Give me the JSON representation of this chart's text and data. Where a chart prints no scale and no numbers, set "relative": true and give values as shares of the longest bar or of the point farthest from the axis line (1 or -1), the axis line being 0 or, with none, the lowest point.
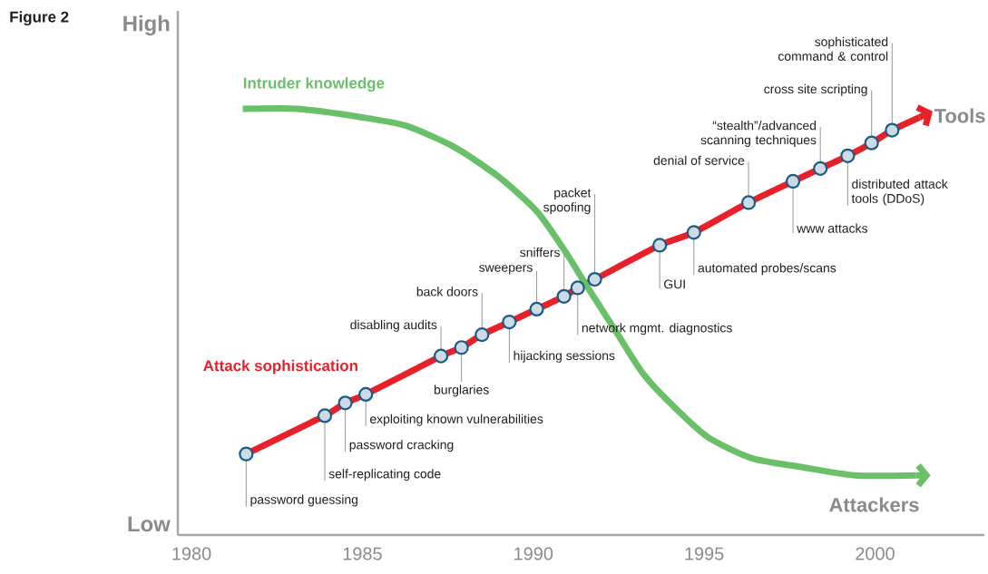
{
  "chart_data": {
    "type": "line",
    "relative": true,
    "xlim": [
      1979.6,
      2003.2
    ],
    "xticks": [
      1980,
      1985,
      1990,
      1995,
      2000
    ],
    "series": [
      {
        "name": "Attack sophistication",
        "type": "line",
        "color": "#e8202a",
        "x": [
          1981.6,
          1983.9,
          1984.5,
          1985.1,
          1987.3,
          1987.9,
          1988.5,
          1989.3,
          1990.1,
          1990.9,
          1991.3,
          1991.8,
          1993.7,
          1994.7,
          1996.3,
          1997.6,
          1998.4,
          1999.2,
          1999.9,
          2000.5,
          2001.3
        ],
        "values": [
          0.19,
          0.28,
          0.31,
          0.33,
          0.42,
          0.44,
          0.47,
          0.5,
          0.53,
          0.56,
          0.58,
          0.6,
          0.68,
          0.71,
          0.78,
          0.83,
          0.86,
          0.89,
          0.92,
          0.95,
          0.98
        ]
      },
      {
        "name": "Intruder knowledge",
        "type": "line",
        "color": "#6abf69",
        "x": [
          1981.5,
          1983.1,
          1985.0,
          1986.3,
          1987.7,
          1989.0,
          1990.1,
          1990.9,
          1991.6,
          1992.4,
          1993.2,
          1994.0,
          1995.1,
          1996.4,
          1997.8,
          1999.4,
          2001.2
        ],
        "values": [
          1,
          1,
          0.98,
          0.96,
          0.91,
          0.84,
          0.76,
          0.67,
          0.58,
          0.48,
          0.38,
          0.31,
          0.23,
          0.18,
          0.16,
          0.14,
          0.14
        ]
      },
      {
        "type": "scatter",
        "marker": "circle",
        "color": "#1d5a85",
        "x": [
          1981.6,
          1983.9,
          1984.5,
          1985.1,
          1987.3,
          1987.9,
          1988.5,
          1989.3,
          1990.1,
          1990.9,
          1991.3,
          1991.8,
          1993.7,
          1994.7,
          1996.3,
          1997.6,
          1998.4,
          1999.2,
          1999.9,
          2000.5
        ],
        "values": [
          0.19,
          0.28,
          0.31,
          0.33,
          0.42,
          0.44,
          0.47,
          0.5,
          0.53,
          0.56,
          0.58,
          0.6,
          0.68,
          0.71,
          0.78,
          0.83,
          0.86,
          0.89,
          0.92,
          0.95
        ]
      }
    ],
    "annotations": [
      "Figure 2",
      "High",
      "Low",
      {
        "text": "Tools",
        "x": 2001.3,
        "y": 0.98
      },
      {
        "text": "Attackers",
        "x": 2001.2,
        "y": 0.14
      },
      {
        "text": "password guessing",
        "x": 1981.6,
        "y": 0.19
      },
      {
        "text": "self-replicating code",
        "x": 1983.9,
        "y": 0.28
      },
      {
        "text": "password cracking",
        "x": 1984.5,
        "y": 0.31
      },
      {
        "text": "exploiting known vulnerabilities",
        "x": 1985.1,
        "y": 0.33
      },
      {
        "text": "disabling audits",
        "x": 1987.3,
        "y": 0.42
      },
      {
        "text": "burglaries",
        "x": 1987.9,
        "y": 0.44
      },
      {
        "text": "back doors",
        "x": 1988.5,
        "y": 0.47
      },
      {
        "text": "hijacking sessions",
        "x": 1989.3,
        "y": 0.5
      },
      {
        "text": "sweepers",
        "x": 1990.1,
        "y": 0.53
      },
      {
        "text": "sniffers",
        "x": 1990.9,
        "y": 0.56
      },
      {
        "text": "network mgmt. diagnostics",
        "x": 1991.3,
        "y": 0.58
      },
      {
        "text": "packet spoofing",
        "x": 1991.8,
        "y": 0.6
      },
      {
        "text": "GUI",
        "x": 1993.7,
        "y": 0.68
      },
      {
        "text": "automated probes/scans",
        "x": 1994.7,
        "y": 0.71
      },
      {
        "text": "denial of service",
        "x": 1996.3,
        "y": 0.78
      },
      {
        "text": "www attacks",
        "x": 1997.6,
        "y": 0.83
      },
      {
        "text": "“stealth”/advanced scanning techniques",
        "x": 1998.4,
        "y": 0.86
      },
      {
        "text": "distributed attack tools (DDoS)",
        "x": 1999.2,
        "y": 0.89
      },
      {
        "text": "cross site scripting",
        "x": 1999.9,
        "y": 0.92
      },
      {
        "text": "sophisticated command & control",
        "x": 2000.5,
        "y": 0.95
      }
    ]
  }
}
